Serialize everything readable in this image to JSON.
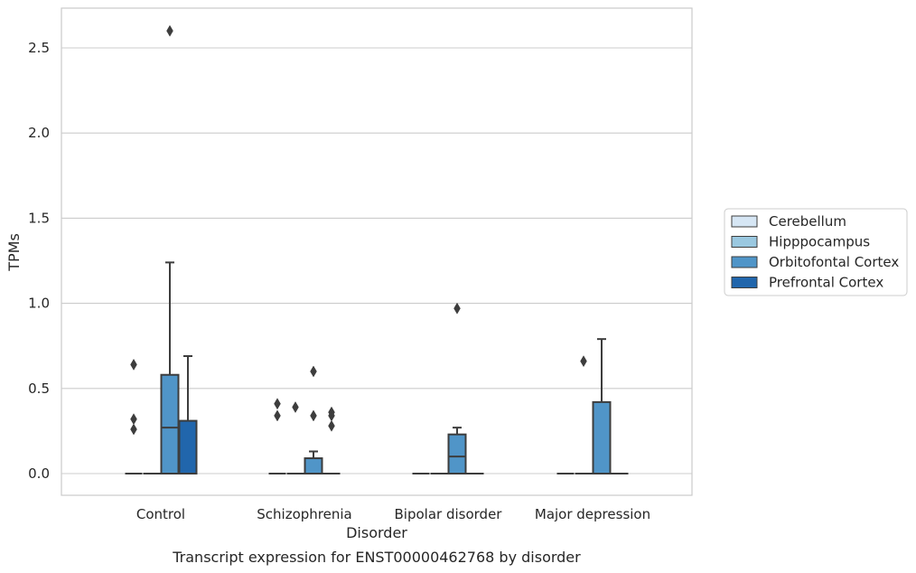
{
  "chart_data": {
    "type": "box",
    "xlabel": "Disorder",
    "ylabel": "TPMs",
    "caption": "Transcript expression for ENST00000462768 by disorder",
    "categories": [
      "Control",
      "Schizophrenia",
      "Bipolar disorder",
      "Major depression"
    ],
    "ylim": [
      -0.13,
      2.74
    ],
    "yticks": [
      0.0,
      0.5,
      1.0,
      1.5,
      2.0,
      2.5
    ],
    "ytick_labels": [
      "0.0",
      "0.5",
      "1.0",
      "1.5",
      "2.0",
      "2.5"
    ],
    "grid": true,
    "legend_position": "right",
    "series": [
      {
        "name": "Cerebellum",
        "color": "#d6e6f4",
        "boxes": [
          {
            "q1": 0,
            "median": 0,
            "q3": 0,
            "whisker_low": 0,
            "whisker_high": 0,
            "outliers": [
              0.26,
              0.32,
              0.64
            ]
          },
          {
            "q1": 0,
            "median": 0,
            "q3": 0,
            "whisker_low": 0,
            "whisker_high": 0,
            "outliers": [
              0.34,
              0.41
            ]
          },
          {
            "q1": 0,
            "median": 0,
            "q3": 0,
            "whisker_low": 0,
            "whisker_high": 0,
            "outliers": []
          },
          {
            "q1": 0,
            "median": 0,
            "q3": 0,
            "whisker_low": 0,
            "whisker_high": 0,
            "outliers": []
          }
        ]
      },
      {
        "name": "Hipppocampus",
        "color": "#9ac8e0",
        "boxes": [
          {
            "q1": 0,
            "median": 0,
            "q3": 0,
            "whisker_low": 0,
            "whisker_high": 0,
            "outliers": []
          },
          {
            "q1": 0,
            "median": 0,
            "q3": 0,
            "whisker_low": 0,
            "whisker_high": 0,
            "outliers": [
              0.39
            ]
          },
          {
            "q1": 0,
            "median": 0,
            "q3": 0,
            "whisker_low": 0,
            "whisker_high": 0,
            "outliers": []
          },
          {
            "q1": 0,
            "median": 0,
            "q3": 0,
            "whisker_low": 0,
            "whisker_high": 0,
            "outliers": [
              0.66
            ]
          }
        ]
      },
      {
        "name": "Orbitofontal Cortex",
        "color": "#5095c8",
        "boxes": [
          {
            "q1": 0,
            "median": 0.27,
            "q3": 0.58,
            "whisker_low": 0,
            "whisker_high": 1.24,
            "outliers": [
              2.6
            ]
          },
          {
            "q1": 0,
            "median": 0,
            "q3": 0.09,
            "whisker_low": 0,
            "whisker_high": 0.13,
            "outliers": [
              0.34,
              0.6
            ]
          },
          {
            "q1": 0,
            "median": 0.1,
            "q3": 0.23,
            "whisker_low": 0,
            "whisker_high": 0.27,
            "outliers": [
              0.97
            ]
          },
          {
            "q1": 0,
            "median": 0,
            "q3": 0.42,
            "whisker_low": 0,
            "whisker_high": 0.79,
            "outliers": []
          }
        ]
      },
      {
        "name": "Prefrontal Cortex",
        "color": "#2166ac",
        "boxes": [
          {
            "q1": 0,
            "median": 0,
            "q3": 0.31,
            "whisker_low": 0,
            "whisker_high": 0.69,
            "outliers": []
          },
          {
            "q1": 0,
            "median": 0,
            "q3": 0,
            "whisker_low": 0,
            "whisker_high": 0,
            "outliers": [
              0.28,
              0.34,
              0.36
            ]
          },
          {
            "q1": 0,
            "median": 0,
            "q3": 0,
            "whisker_low": 0,
            "whisker_high": 0,
            "outliers": []
          },
          {
            "q1": 0,
            "median": 0,
            "q3": 0,
            "whisker_low": 0,
            "whisker_high": 0,
            "outliers": []
          }
        ]
      }
    ]
  }
}
